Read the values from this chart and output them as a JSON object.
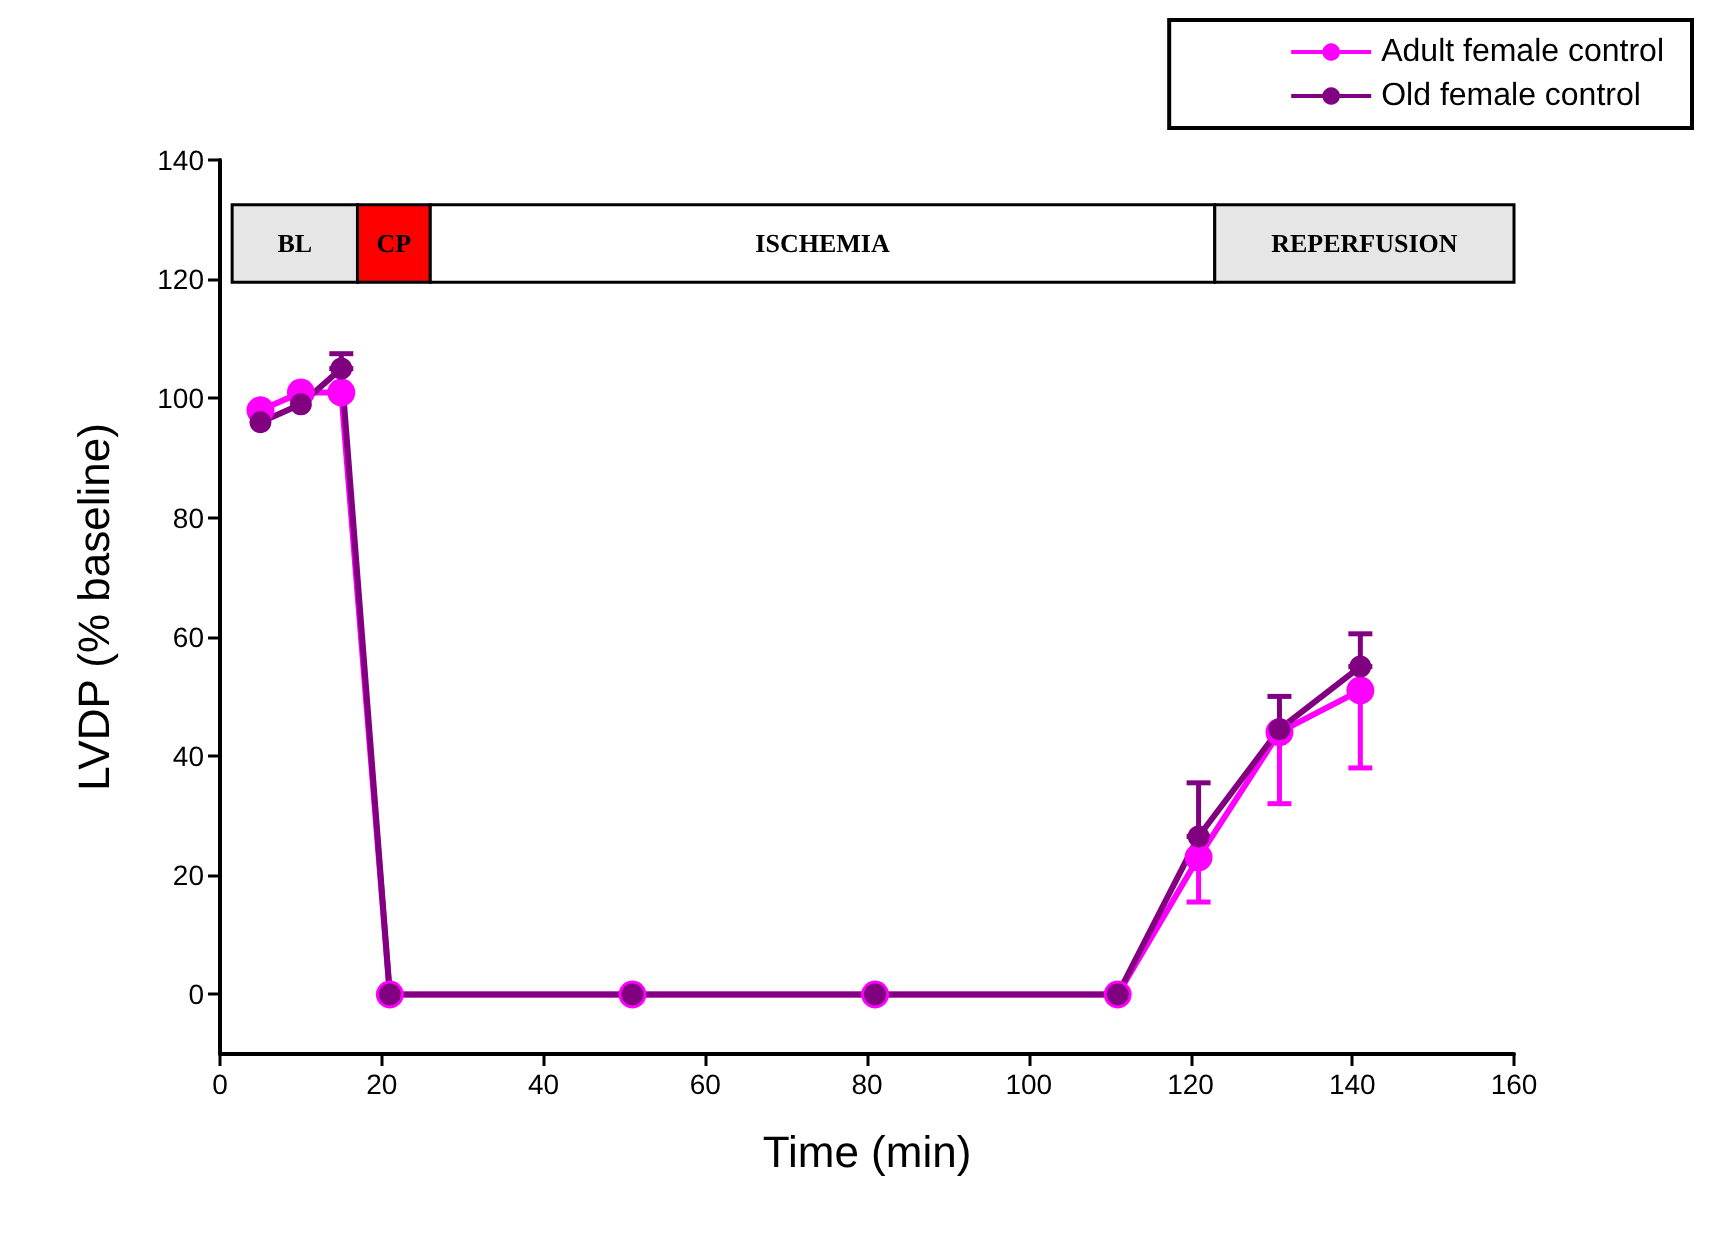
{
  "chart_data": {
    "type": "line",
    "xlabel": "Time (min)",
    "ylabel": "LVDP (% baseline)",
    "xlim": [
      0,
      160
    ],
    "xticks": [
      0,
      20,
      40,
      60,
      80,
      100,
      120,
      140,
      160
    ],
    "ylim": [
      -10,
      140
    ],
    "yticks": [
      0,
      20,
      40,
      60,
      80,
      100,
      120,
      140
    ],
    "x": [
      5,
      10,
      15,
      21,
      51,
      81,
      111,
      121,
      131,
      141
    ],
    "series": [
      {
        "name": "Adult female control",
        "color": "#ff00ff",
        "values": [
          98,
          101,
          101,
          0,
          0,
          0,
          0,
          23,
          44,
          51
        ],
        "errors": [
          null,
          null,
          null,
          null,
          null,
          null,
          null,
          [
            15.5,
            23
          ],
          [
            32,
            44
          ],
          [
            38,
            51
          ]
        ]
      },
      {
        "name": "Old female control",
        "color": "#800080",
        "values": [
          96,
          99,
          105,
          0,
          0,
          0,
          0,
          26.5,
          44.5,
          55
        ],
        "errors": [
          null,
          null,
          [
            105,
            107.5
          ],
          null,
          null,
          null,
          null,
          [
            26.5,
            35.5
          ],
          [
            44.5,
            50
          ],
          [
            55,
            60.5
          ]
        ]
      }
    ],
    "bands": [
      {
        "axis": "x",
        "from": 1.5,
        "to": 17,
        "label": "BL",
        "color": "#e6e6e6"
      },
      {
        "axis": "x",
        "from": 17,
        "to": 26,
        "label": "CP",
        "color": "#ff0000"
      },
      {
        "axis": "x",
        "from": 26,
        "to": 123,
        "label": "ISCHEMIA",
        "color": "#ffffff"
      },
      {
        "axis": "x",
        "from": 123,
        "to": 160,
        "label": "REPERFUSION",
        "color": "#e6e6e6"
      }
    ],
    "marker": "circle",
    "line_style": "solid",
    "grid": false,
    "legend": "top right"
  }
}
